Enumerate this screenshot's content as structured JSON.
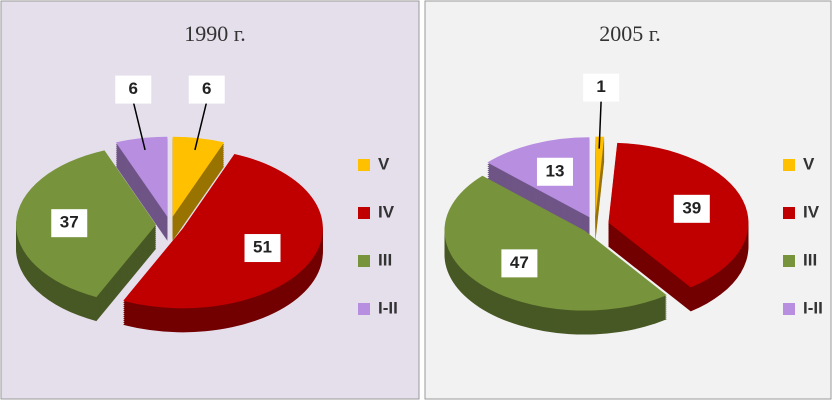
{
  "chart_data": [
    {
      "type": "pie",
      "title": "1990 г.",
      "categories": [
        "V",
        "IV",
        "III",
        "I-II"
      ],
      "values": [
        6,
        51,
        37,
        6
      ],
      "colors": [
        "#ffc000",
        "#c00000",
        "#77933c",
        "#b88ee0"
      ]
    },
    {
      "type": "pie",
      "title": "2005 г.",
      "categories": [
        "V",
        "IV",
        "III",
        "I-II"
      ],
      "values": [
        1,
        39,
        47,
        13
      ],
      "colors": [
        "#ffc000",
        "#c00000",
        "#77933c",
        "#b88ee0"
      ]
    }
  ]
}
